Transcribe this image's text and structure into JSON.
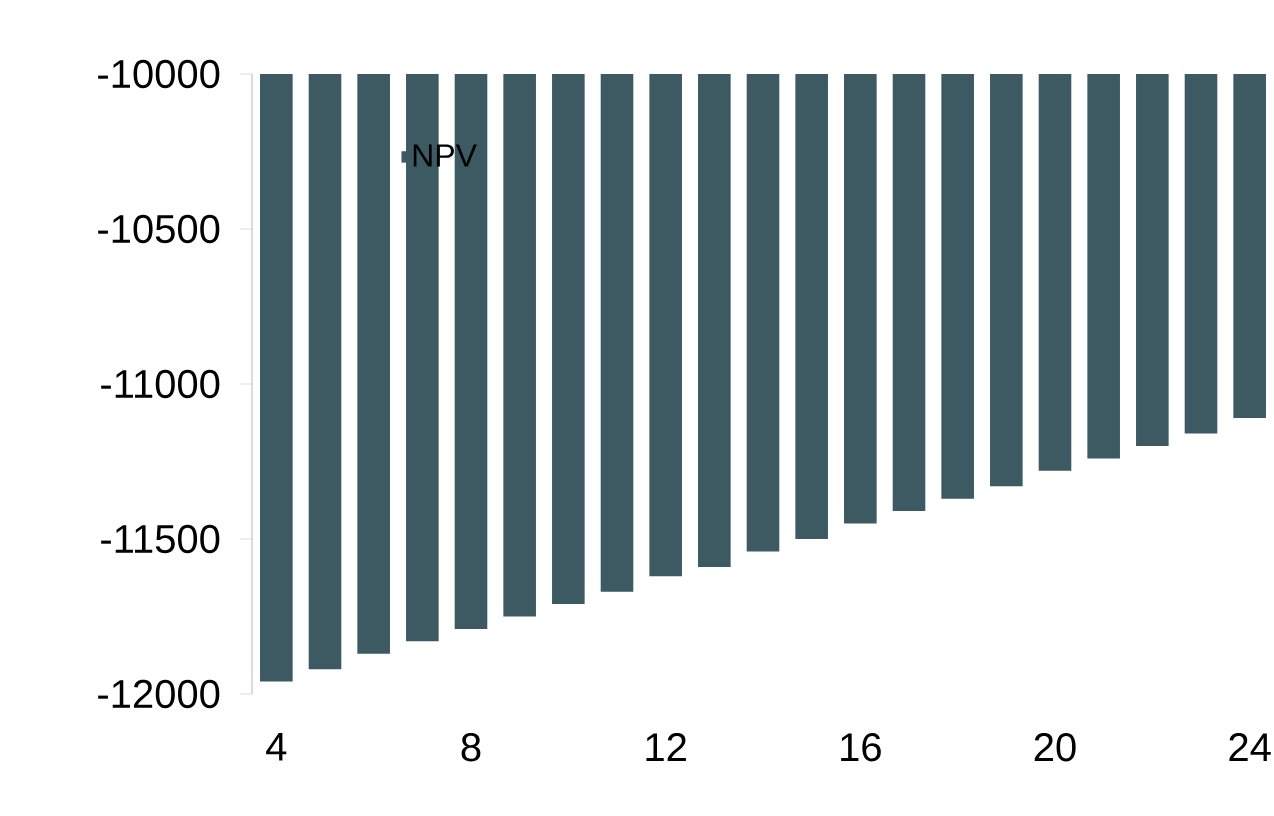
{
  "chart_data": {
    "type": "bar",
    "x": [
      4,
      5,
      6,
      7,
      8,
      9,
      10,
      11,
      12,
      13,
      14,
      15,
      16,
      17,
      18,
      19,
      20,
      21,
      22,
      23,
      24
    ],
    "series": [
      {
        "name": "NPV",
        "color": "#3d5a63",
        "values": [
          -11960,
          -11920,
          -11870,
          -11830,
          -11790,
          -11750,
          -11710,
          -11670,
          -11620,
          -11590,
          -11540,
          -11500,
          -11450,
          -11410,
          -11370,
          -11330,
          -11280,
          -11240,
          -11200,
          -11160,
          -11110
        ]
      }
    ],
    "xlim": [
      3.5,
      24.5
    ],
    "xticks": [
      4,
      8,
      12,
      16,
      20,
      24
    ],
    "ylim": [
      -12000,
      -10000
    ],
    "yticks": [
      -12000,
      -11500,
      -11000,
      -10500,
      -10000
    ],
    "legend": "top left",
    "grid": false
  }
}
